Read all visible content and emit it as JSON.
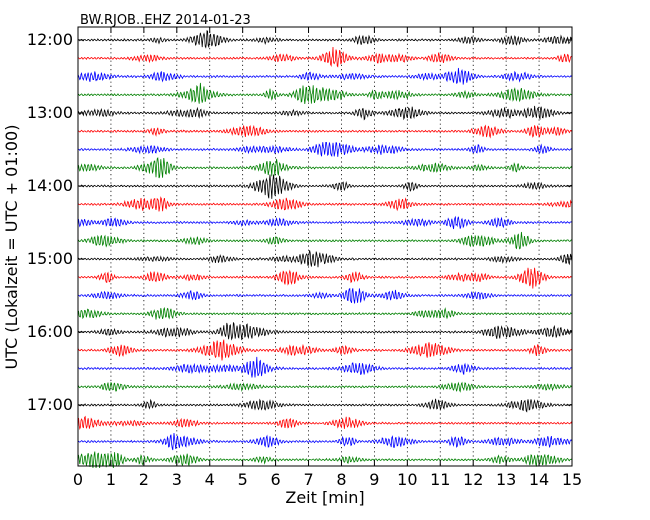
{
  "chart_data": {
    "type": "line",
    "title": "BW.RJOB..EHZ 2014-01-23",
    "xlabel": "Zeit  [min]",
    "ylabel": "UTC (Lokalzeit = UTC + 01:00)",
    "xlim": [
      0,
      15
    ],
    "x_ticks": [
      "0",
      "1",
      "2",
      "3",
      "4",
      "5",
      "6",
      "7",
      "8",
      "9",
      "10",
      "11",
      "12",
      "13",
      "14",
      "15"
    ],
    "y_ticks": [
      {
        "label": "12:00",
        "row": 0
      },
      {
        "label": "13:00",
        "row": 4
      },
      {
        "label": "14:00",
        "row": 8
      },
      {
        "label": "15:00",
        "row": 12
      },
      {
        "label": "16:00",
        "row": 16
      },
      {
        "label": "17:00",
        "row": 20
      }
    ],
    "row_count": 24,
    "row_interval_minutes": 15,
    "trace_colors": [
      "#000000",
      "#ff0000",
      "#0000ff",
      "#008000"
    ],
    "grid": {
      "x": true,
      "y": false
    }
  }
}
